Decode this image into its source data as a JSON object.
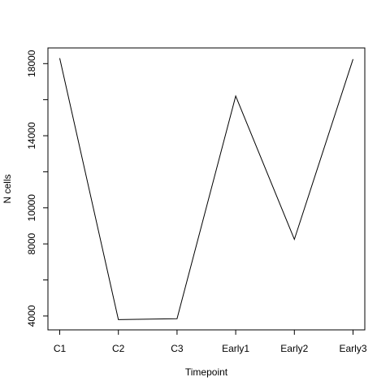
{
  "chart_data": {
    "type": "line",
    "title": "",
    "xlabel": "Timepoint",
    "ylabel": "N cells",
    "categories": [
      "C1",
      "C2",
      "C3",
      "Early1",
      "Early2",
      "Early3"
    ],
    "series": [
      {
        "values": [
          18300,
          3800,
          3850,
          16200,
          8250,
          18250
        ]
      }
    ],
    "yticks": [
      4000,
      6000,
      8000,
      10000,
      12000,
      14000,
      16000,
      18000
    ],
    "ytick_labels": [
      "4000",
      "",
      "8000",
      "10000",
      "",
      "14000",
      "",
      "18000"
    ],
    "ytick_labels_rotated": true,
    "ylim": [
      3230,
      18870
    ],
    "grid": false,
    "box": true,
    "line_color": "#000000"
  }
}
